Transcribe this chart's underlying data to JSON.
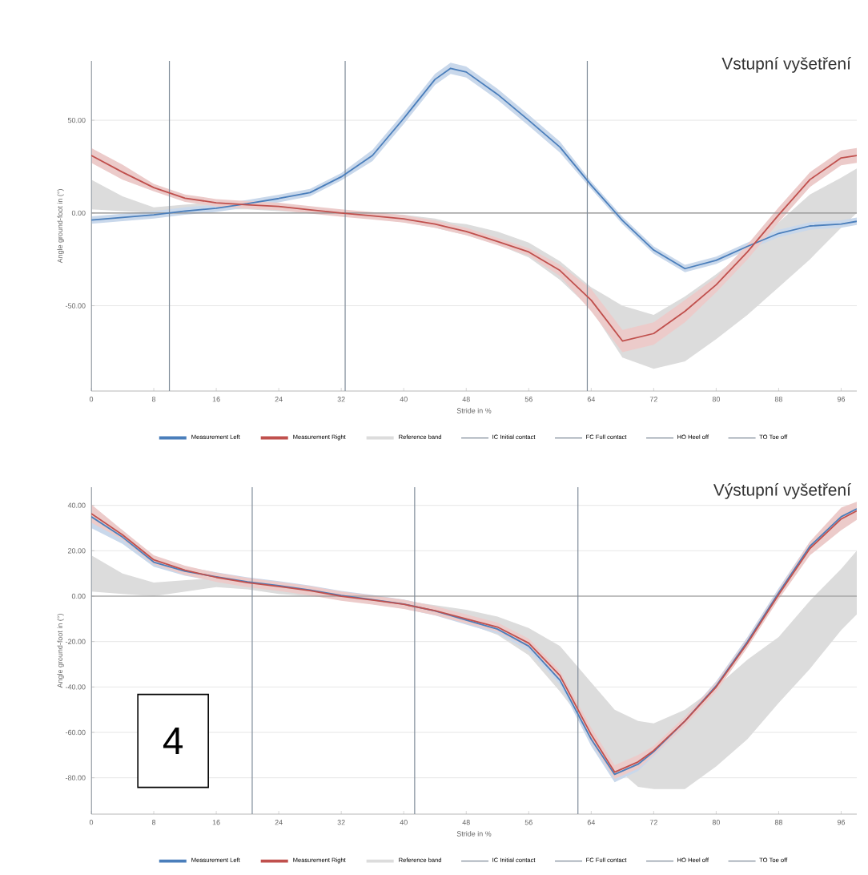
{
  "chart_data": [
    {
      "type": "line",
      "title": "Vstupní vyšetření",
      "xlabel": "Stride in %",
      "ylabel": "Angle ground-foot in (°)",
      "xlim": [
        0,
        98
      ],
      "ylim": [
        -96,
        82
      ],
      "xticks": [
        0,
        8,
        16,
        24,
        32,
        40,
        48,
        56,
        64,
        72,
        80,
        88,
        96
      ],
      "yticks": [
        {
          "value": -50,
          "label": "-50.00"
        },
        {
          "value": 0,
          "label": "0.00"
        },
        {
          "value": 50,
          "label": "50.00"
        }
      ],
      "grid": "y",
      "legend": "bottom",
      "marker": "none",
      "line_style": "solid",
      "ref_lines": [
        {
          "axis": "y",
          "value": 0,
          "color": "#8c8c8c"
        },
        {
          "axis": "x",
          "value": 0,
          "label": "IC Initial contact",
          "color": "#7f8b99"
        },
        {
          "axis": "x",
          "value": 10,
          "label": "FC Full contact",
          "color": "#7f8b99"
        },
        {
          "axis": "x",
          "value": 32.5,
          "label": "HO Heel off",
          "color": "#7f8b99"
        },
        {
          "axis": "x",
          "value": 63.5,
          "label": "TO Toe off",
          "color": "#7f8b99"
        }
      ],
      "series": [
        {
          "name": "Measurement Left",
          "color": "#4a7ebb",
          "x": [
            0,
            4,
            8,
            12,
            16,
            20,
            24,
            28,
            32,
            36,
            40,
            44,
            46,
            48,
            52,
            56,
            60,
            64,
            68,
            72,
            76,
            80,
            84,
            88,
            92,
            96,
            98
          ],
          "values": [
            -3.8,
            -2.4,
            -1,
            1,
            2.6,
            5,
            7.8,
            11,
            19.5,
            31,
            51,
            72,
            78,
            76,
            64,
            50,
            35.5,
            15,
            -4,
            -20,
            -30,
            -25.5,
            -18,
            -11,
            -7,
            -6,
            -4.5
          ],
          "lower": [
            -5.8,
            -4.4,
            -3,
            -1,
            0.6,
            3,
            5.8,
            9,
            17.5,
            28,
            48,
            69,
            75,
            73,
            61,
            47,
            32.5,
            13,
            -6,
            -22,
            -32,
            -27.5,
            -20,
            -13,
            -9,
            -8,
            -6.5
          ],
          "upper": [
            -1.8,
            -0.4,
            1,
            3,
            4.6,
            7,
            9.8,
            13,
            21.5,
            34,
            54,
            75,
            81,
            79,
            67,
            53,
            38.5,
            17,
            -2,
            -18,
            -28,
            -23.5,
            -16,
            -9,
            -5,
            -4,
            -2.5
          ]
        },
        {
          "name": "Measurement Right",
          "color": "#c0504d",
          "x": [
            0,
            4,
            8,
            12,
            16,
            20,
            24,
            28,
            32,
            36,
            40,
            44,
            46,
            48,
            52,
            56,
            60,
            64,
            68,
            72,
            76,
            80,
            84,
            88,
            92,
            96,
            98
          ],
          "values": [
            31,
            22,
            13.7,
            8,
            5.5,
            4.4,
            3.5,
            1.7,
            0,
            -1.5,
            -3.2,
            -6,
            -8,
            -10,
            -15.4,
            -21,
            -31,
            -47,
            -69,
            -65,
            -53,
            -38.7,
            -21,
            -1,
            18,
            29.7,
            31
          ],
          "lower": [
            27,
            18,
            11.7,
            6,
            3.5,
            2.4,
            1.5,
            -0.3,
            -2,
            -3.5,
            -5.2,
            -8,
            -10,
            -12,
            -17.4,
            -23,
            -34,
            -53,
            -75,
            -71,
            -59,
            -42.7,
            -25,
            -5,
            14,
            25.7,
            27
          ],
          "upper": [
            35,
            26,
            15.7,
            10,
            7.5,
            6.4,
            5.5,
            3.7,
            2,
            0.5,
            -1.2,
            -4,
            -6,
            -8,
            -13.4,
            -19,
            -28,
            -41,
            -63,
            -59,
            -47,
            -34.7,
            -17,
            3,
            22,
            33.7,
            35
          ]
        },
        {
          "name": "Reference band",
          "color": "#dcdcdc",
          "x": [
            0,
            4,
            8,
            16,
            20,
            28,
            32,
            36,
            40,
            44,
            46,
            48,
            52,
            56,
            60,
            64,
            68,
            72,
            76,
            80,
            84,
            88,
            92,
            96,
            98
          ],
          "values": [
            null,
            null,
            null,
            null,
            null,
            null,
            null,
            null,
            null,
            null,
            null,
            null,
            null,
            null,
            null,
            null,
            null,
            null,
            null,
            null,
            null,
            null,
            null,
            null,
            null
          ],
          "lower": [
            2,
            1,
            0,
            2,
            2,
            0,
            -1,
            -3,
            -5,
            -8,
            -10,
            -12,
            -17,
            -24,
            -36,
            -52,
            -78,
            -84,
            -80,
            -68,
            -55,
            -40,
            -25,
            -8,
            0
          ],
          "upper": [
            18,
            9,
            3,
            6,
            5,
            2,
            1,
            0,
            -1,
            -3,
            -5,
            -6,
            -10,
            -16,
            -26,
            -40,
            -50,
            -55,
            -45,
            -33,
            -20,
            -5,
            10,
            19,
            24
          ]
        }
      ]
    },
    {
      "type": "line",
      "title": "Výstupní vyšetření",
      "xlabel": "Stride in %",
      "ylabel": "Angle ground-foot in (°)",
      "xlim": [
        0,
        98
      ],
      "ylim": [
        -96,
        48
      ],
      "xticks": [
        0,
        8,
        16,
        24,
        32,
        40,
        48,
        56,
        64,
        72,
        80,
        88,
        96
      ],
      "yticks": [
        {
          "value": -80,
          "label": "-80.00"
        },
        {
          "value": -60,
          "label": "-60.00"
        },
        {
          "value": -40,
          "label": "-40.00"
        },
        {
          "value": -20,
          "label": "-20.00"
        },
        {
          "value": 0,
          "label": "0.00"
        },
        {
          "value": 20,
          "label": "20.00"
        },
        {
          "value": 40,
          "label": "40.00"
        }
      ],
      "grid": "y",
      "legend": "bottom",
      "marker": "none",
      "line_style": "solid",
      "annotations": [
        "4"
      ],
      "ref_lines": [
        {
          "axis": "y",
          "value": 0,
          "color": "#8c8c8c"
        },
        {
          "axis": "x",
          "value": 0,
          "label": "IC Initial contact",
          "color": "#7f8b99"
        },
        {
          "axis": "x",
          "value": 20.6,
          "label": "FC Full contact",
          "color": "#7f8b99"
        },
        {
          "axis": "x",
          "value": 41.4,
          "label": "HO Heel off",
          "color": "#7f8b99"
        },
        {
          "axis": "x",
          "value": 62.3,
          "label": "TO Toe off",
          "color": "#7f8b99"
        }
      ],
      "series": [
        {
          "name": "Measurement Left",
          "color": "#4a7ebb",
          "x": [
            0,
            4,
            8,
            12,
            16,
            20,
            24,
            28,
            32,
            36,
            40,
            44,
            48,
            52,
            56,
            60,
            64,
            67,
            70,
            72,
            76,
            80,
            84,
            88,
            92,
            96,
            98
          ],
          "values": [
            35,
            26,
            15,
            11,
            8.5,
            6.3,
            4.6,
            2.7,
            0.3,
            -1.5,
            -3.5,
            -6.5,
            -10.5,
            -14.5,
            -22,
            -37,
            -63,
            -78.5,
            -74,
            -68.5,
            -55,
            -39.5,
            -20,
            1.5,
            22,
            35,
            38.5
          ],
          "lower": [
            30,
            23,
            13,
            9,
            6.5,
            4.3,
            2.6,
            0.7,
            -1.7,
            -3.5,
            -5.5,
            -8.5,
            -12.5,
            -16.5,
            -24,
            -39,
            -66,
            -82,
            -77,
            -70.5,
            -57,
            -41.5,
            -22,
            -0.5,
            20,
            33,
            36.5
          ],
          "upper": [
            38,
            29,
            17,
            13,
            10.5,
            8.3,
            6.6,
            4.7,
            2.3,
            0.5,
            -1.5,
            -4.5,
            -8.5,
            -12.5,
            -20,
            -35,
            -60,
            -75,
            -71,
            -66.5,
            -53,
            -37.5,
            -18,
            3.5,
            24,
            37,
            40.5
          ]
        },
        {
          "name": "Measurement Right",
          "color": "#c0504d",
          "x": [
            0,
            4,
            8,
            12,
            16,
            20,
            24,
            28,
            32,
            36,
            40,
            44,
            48,
            52,
            56,
            60,
            64,
            67,
            70,
            72,
            76,
            80,
            84,
            88,
            92,
            96,
            98
          ],
          "values": [
            36.4,
            27,
            16,
            11.4,
            8.3,
            6,
            4.3,
            2.4,
            0,
            -1.7,
            -3.6,
            -6.4,
            -10,
            -13.6,
            -20.7,
            -35,
            -61,
            -77.5,
            -73,
            -68,
            -55,
            -40,
            -20.7,
            0.7,
            21,
            34,
            37.6
          ],
          "lower": [
            32.4,
            25,
            14,
            9.4,
            6.3,
            4,
            2.3,
            0.4,
            -2,
            -3.7,
            -5.6,
            -8.4,
            -12,
            -15.6,
            -22.7,
            -37,
            -64,
            -80.5,
            -76,
            -70,
            -57,
            -42,
            -22.7,
            -1.3,
            18,
            29,
            33.6
          ],
          "upper": [
            40.4,
            29,
            18,
            13.4,
            10.3,
            8,
            6.3,
            4.4,
            2,
            0.3,
            -1.6,
            -4.4,
            -8,
            -11.6,
            -18.7,
            -33,
            -58,
            -74.5,
            -70,
            -66,
            -53,
            -38,
            -18.7,
            2.7,
            24,
            39,
            41.6
          ]
        },
        {
          "name": "Reference band",
          "color": "#dcdcdc",
          "x": [
            0,
            4,
            8,
            16,
            20,
            24,
            28,
            32,
            36,
            40,
            44,
            48,
            52,
            56,
            60,
            64,
            67,
            70,
            72,
            76,
            80,
            84,
            88,
            92,
            96,
            98
          ],
          "values": [
            null,
            null,
            null,
            null,
            null,
            null,
            null,
            null,
            null,
            null,
            null,
            null,
            null,
            null,
            null,
            null,
            null,
            null,
            null,
            null,
            null,
            null,
            null,
            null,
            null,
            null
          ],
          "lower": [
            2,
            1,
            0,
            4,
            3,
            1,
            0,
            -1,
            -3,
            -5,
            -8,
            -12,
            -17,
            -26,
            -42,
            -60,
            -75,
            -84,
            -85,
            -85,
            -75,
            -63,
            -47,
            -32,
            -15,
            -8
          ],
          "upper": [
            18,
            10,
            6,
            8,
            6,
            3,
            1,
            0,
            -1,
            -2,
            -4,
            -6,
            -9,
            -14,
            -22,
            -38,
            -50,
            -55,
            -56,
            -50,
            -40,
            -28,
            -18,
            -2,
            12,
            20
          ]
        }
      ]
    }
  ]
}
